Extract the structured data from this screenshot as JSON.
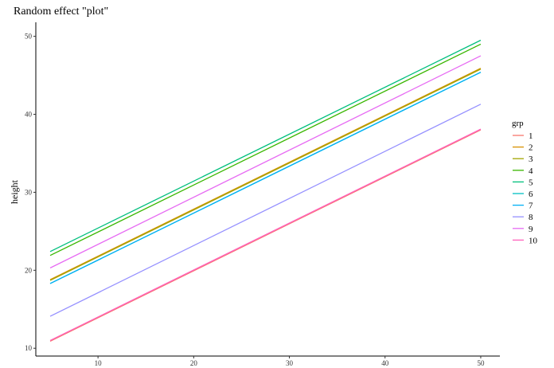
{
  "chart_data": {
    "type": "line",
    "title": "Random effect \"plot\"",
    "xlabel": "",
    "ylabel": "height",
    "xlim": [
      3.5,
      52.0
    ],
    "ylim": [
      9.0,
      51.8
    ],
    "x_ticks": [
      10,
      20,
      30,
      40,
      50
    ],
    "y_ticks": [
      10,
      20,
      30,
      40,
      50
    ],
    "grid": false,
    "legend_title": "grp",
    "legend_position": "right",
    "series": [
      {
        "name": "1",
        "color": "#F8766D",
        "x": [
          5,
          50
        ],
        "y": [
          10.9,
          38.0
        ]
      },
      {
        "name": "2",
        "color": "#D89000",
        "x": [
          5,
          50
        ],
        "y": [
          18.8,
          45.9
        ]
      },
      {
        "name": "3",
        "color": "#A3A500",
        "x": [
          5,
          50
        ],
        "y": [
          18.7,
          45.8
        ]
      },
      {
        "name": "4",
        "color": "#39B600",
        "x": [
          5,
          50
        ],
        "y": [
          21.9,
          49.0
        ]
      },
      {
        "name": "5",
        "color": "#00BF7D",
        "x": [
          5,
          50
        ],
        "y": [
          22.4,
          49.5
        ]
      },
      {
        "name": "6",
        "color": "#00BFC4",
        "x": [
          5,
          50
        ],
        "y": [
          18.3,
          45.4
        ]
      },
      {
        "name": "7",
        "color": "#00B0F6",
        "x": [
          5,
          50
        ],
        "y": [
          18.3,
          45.4
        ]
      },
      {
        "name": "8",
        "color": "#9590FF",
        "x": [
          5,
          50
        ],
        "y": [
          14.1,
          41.3
        ]
      },
      {
        "name": "9",
        "color": "#E76BF3",
        "x": [
          5,
          50
        ],
        "y": [
          20.3,
          47.5
        ]
      },
      {
        "name": "10",
        "color": "#FF62BC",
        "x": [
          5,
          50
        ],
        "y": [
          11.0,
          38.1
        ]
      }
    ]
  }
}
